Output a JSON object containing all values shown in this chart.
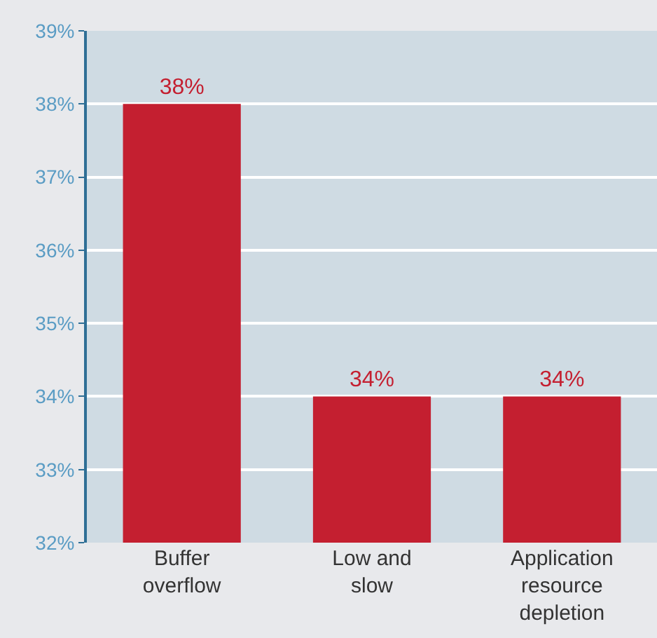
{
  "chart_data": {
    "type": "bar",
    "categories": [
      "Buffer overflow",
      "Low and slow",
      "Application resource depletion"
    ],
    "values": [
      38,
      34,
      34
    ],
    "value_labels": [
      "38%",
      "34%",
      "34%"
    ],
    "color": "#c41f30",
    "ylim": [
      32,
      39
    ],
    "yticks": [
      {
        "value": 32,
        "label": "32%"
      },
      {
        "value": 33,
        "label": "33%"
      },
      {
        "value": 34,
        "label": "34%"
      },
      {
        "value": 35,
        "label": "35%"
      },
      {
        "value": 36,
        "label": "36%"
      },
      {
        "value": 37,
        "label": "37%"
      },
      {
        "value": 38,
        "label": "38%"
      },
      {
        "value": 39,
        "label": "39%"
      }
    ],
    "grid": "y"
  }
}
